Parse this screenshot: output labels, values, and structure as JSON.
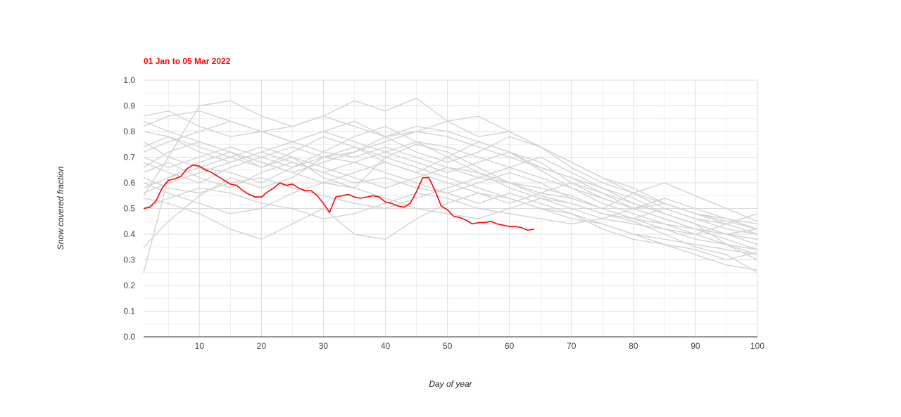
{
  "chart_data": {
    "type": "line",
    "title": "",
    "legend": {
      "label": "01 Jan to 05 Mar 2022",
      "position": "top-left"
    },
    "xlabel": "Day of year",
    "ylabel": "Snow covered fraction",
    "xlim": [
      1,
      100
    ],
    "ylim": [
      0,
      1
    ],
    "x_ticks": [
      10,
      20,
      30,
      40,
      50,
      60,
      70,
      80,
      90,
      100
    ],
    "y_ticks": [
      "0.0",
      "0.1",
      "0.2",
      "0.3",
      "0.4",
      "0.5",
      "0.6",
      "0.7",
      "0.8",
      "0.9",
      "1.0"
    ],
    "grid": true,
    "colors": {
      "current": "#ff0000",
      "historical": "#d3d3d3",
      "grid": "#dddddd",
      "axis": "#333333"
    },
    "current_series": {
      "name": "01 Jan to 05 Mar 2022",
      "x": [
        1,
        2,
        3,
        4,
        5,
        6,
        7,
        8,
        9,
        10,
        11,
        12,
        13,
        14,
        15,
        16,
        17,
        18,
        19,
        20,
        21,
        22,
        23,
        24,
        25,
        26,
        27,
        28,
        29,
        30,
        31,
        32,
        33,
        34,
        35,
        36,
        37,
        38,
        39,
        40,
        41,
        42,
        43,
        44,
        45,
        46,
        47,
        48,
        49,
        50,
        51,
        52,
        53,
        54,
        55,
        56,
        57,
        58,
        59,
        60,
        61,
        62,
        63,
        64
      ],
      "y": [
        0.5,
        0.505,
        0.53,
        0.58,
        0.61,
        0.615,
        0.625,
        0.655,
        0.67,
        0.665,
        0.65,
        0.64,
        0.625,
        0.61,
        0.595,
        0.59,
        0.57,
        0.555,
        0.545,
        0.545,
        0.565,
        0.58,
        0.6,
        0.59,
        0.595,
        0.58,
        0.57,
        0.57,
        0.55,
        0.52,
        0.485,
        0.545,
        0.55,
        0.555,
        0.545,
        0.54,
        0.545,
        0.55,
        0.545,
        0.525,
        0.52,
        0.51,
        0.505,
        0.52,
        0.565,
        0.62,
        0.62,
        0.57,
        0.51,
        0.495,
        0.47,
        0.465,
        0.455,
        0.44,
        0.445,
        0.445,
        0.45,
        0.44,
        0.435,
        0.43,
        0.43,
        0.425,
        0.415,
        0.42
      ]
    },
    "historical_series": [
      {
        "x": [
          1,
          5,
          10,
          15,
          20,
          25,
          30,
          35,
          40,
          45,
          50,
          55,
          60,
          65,
          70,
          75,
          80,
          85,
          90,
          95,
          100
        ],
        "y": [
          0.25,
          0.62,
          0.68,
          0.72,
          0.66,
          0.7,
          0.62,
          0.58,
          0.7,
          0.75,
          0.72,
          0.66,
          0.6,
          0.55,
          0.52,
          0.48,
          0.45,
          0.4,
          0.35,
          0.32,
          0.25
        ]
      },
      {
        "x": [
          1,
          5,
          10,
          15,
          20,
          25,
          30,
          35,
          40,
          45,
          50,
          55,
          60,
          65,
          70,
          75,
          80,
          85,
          90,
          95,
          100
        ],
        "y": [
          0.35,
          0.45,
          0.55,
          0.62,
          0.58,
          0.62,
          0.7,
          0.72,
          0.78,
          0.82,
          0.8,
          0.76,
          0.72,
          0.65,
          0.58,
          0.52,
          0.48,
          0.44,
          0.4,
          0.36,
          0.32
        ]
      },
      {
        "x": [
          1,
          5,
          10,
          15,
          20,
          25,
          30,
          35,
          40,
          45,
          50,
          55,
          60,
          65,
          70,
          75,
          80,
          85,
          90,
          95,
          100
        ],
        "y": [
          0.55,
          0.7,
          0.9,
          0.92,
          0.86,
          0.82,
          0.86,
          0.92,
          0.88,
          0.93,
          0.84,
          0.78,
          0.8,
          0.74,
          0.68,
          0.62,
          0.58,
          0.52,
          0.48,
          0.45,
          0.42
        ]
      },
      {
        "x": [
          1,
          5,
          10,
          15,
          20,
          25,
          30,
          35,
          40,
          45,
          50,
          55,
          60,
          65,
          70,
          75,
          80,
          85,
          90,
          95,
          100
        ],
        "y": [
          0.86,
          0.88,
          0.82,
          0.78,
          0.8,
          0.76,
          0.72,
          0.7,
          0.74,
          0.7,
          0.66,
          0.62,
          0.6,
          0.58,
          0.55,
          0.5,
          0.46,
          0.44,
          0.42,
          0.4,
          0.38
        ]
      },
      {
        "x": [
          1,
          5,
          10,
          15,
          20,
          25,
          30,
          35,
          40,
          45,
          50,
          55,
          60,
          65,
          70,
          75,
          80,
          85,
          90,
          95,
          100
        ],
        "y": [
          0.8,
          0.78,
          0.74,
          0.7,
          0.66,
          0.72,
          0.78,
          0.74,
          0.68,
          0.64,
          0.7,
          0.76,
          0.72,
          0.66,
          0.62,
          0.58,
          0.52,
          0.48,
          0.44,
          0.4,
          0.42
        ]
      },
      {
        "x": [
          1,
          5,
          10,
          15,
          20,
          25,
          30,
          35,
          40,
          45,
          50,
          55,
          60,
          65,
          70,
          75,
          80,
          85,
          90,
          95,
          100
        ],
        "y": [
          0.6,
          0.56,
          0.52,
          0.48,
          0.5,
          0.56,
          0.6,
          0.58,
          0.54,
          0.5,
          0.48,
          0.46,
          0.5,
          0.54,
          0.5,
          0.46,
          0.44,
          0.42,
          0.4,
          0.44,
          0.4
        ]
      },
      {
        "x": [
          1,
          5,
          10,
          15,
          20,
          25,
          30,
          35,
          40,
          45,
          50,
          55,
          60,
          65,
          70,
          75,
          80,
          85,
          90,
          95,
          100
        ],
        "y": [
          0.64,
          0.68,
          0.62,
          0.58,
          0.64,
          0.68,
          0.64,
          0.6,
          0.62,
          0.58,
          0.56,
          0.6,
          0.64,
          0.6,
          0.54,
          0.5,
          0.56,
          0.6,
          0.55,
          0.5,
          0.45
        ]
      },
      {
        "x": [
          1,
          5,
          10,
          15,
          20,
          25,
          30,
          35,
          40,
          45,
          50,
          55,
          60,
          65,
          70,
          75,
          80,
          85,
          90,
          95,
          100
        ],
        "y": [
          0.54,
          0.52,
          0.48,
          0.42,
          0.38,
          0.44,
          0.5,
          0.4,
          0.38,
          0.46,
          0.52,
          0.56,
          0.54,
          0.5,
          0.48,
          0.42,
          0.38,
          0.36,
          0.34,
          0.3,
          0.33
        ]
      },
      {
        "x": [
          1,
          5,
          10,
          15,
          20,
          25,
          30,
          35,
          40,
          45,
          50,
          55,
          60,
          65,
          70,
          75,
          80,
          85,
          90,
          95,
          100
        ],
        "y": [
          0.72,
          0.76,
          0.8,
          0.84,
          0.8,
          0.76,
          0.8,
          0.84,
          0.78,
          0.72,
          0.68,
          0.72,
          0.78,
          0.74,
          0.68,
          0.62,
          0.56,
          0.5,
          0.46,
          0.42,
          0.4
        ]
      },
      {
        "x": [
          1,
          5,
          10,
          15,
          20,
          25,
          30,
          35,
          40,
          45,
          50,
          55,
          60,
          65,
          70,
          75,
          80,
          85,
          90,
          95,
          100
        ],
        "y": [
          0.76,
          0.7,
          0.66,
          0.7,
          0.74,
          0.7,
          0.66,
          0.62,
          0.58,
          0.62,
          0.66,
          0.64,
          0.58,
          0.54,
          0.52,
          0.48,
          0.46,
          0.5,
          0.46,
          0.44,
          0.48
        ]
      },
      {
        "x": [
          1,
          5,
          10,
          15,
          20,
          25,
          30,
          35,
          40,
          45,
          50,
          55,
          60,
          65,
          70,
          75,
          80,
          85,
          90,
          95,
          100
        ],
        "y": [
          0.62,
          0.58,
          0.56,
          0.6,
          0.62,
          0.58,
          0.55,
          0.52,
          0.5,
          0.54,
          0.58,
          0.62,
          0.66,
          0.7,
          0.64,
          0.58,
          0.54,
          0.48,
          0.44,
          0.36,
          0.3
        ]
      },
      {
        "x": [
          1,
          5,
          10,
          15,
          20,
          25,
          30,
          35,
          40,
          45,
          50,
          55,
          60,
          65,
          70,
          75,
          80,
          85,
          90,
          95,
          100
        ],
        "y": [
          0.82,
          0.86,
          0.88,
          0.84,
          0.8,
          0.82,
          0.86,
          0.82,
          0.78,
          0.8,
          0.84,
          0.86,
          0.8,
          0.74,
          0.66,
          0.6,
          0.56,
          0.52,
          0.48,
          0.46,
          0.44
        ]
      },
      {
        "x": [
          1,
          5,
          10,
          15,
          20,
          25,
          30,
          35,
          40,
          45,
          50,
          55,
          60,
          65,
          70,
          75,
          80,
          85,
          90,
          95,
          100
        ],
        "y": [
          0.58,
          0.62,
          0.66,
          0.64,
          0.6,
          0.66,
          0.7,
          0.74,
          0.7,
          0.66,
          0.62,
          0.58,
          0.54,
          0.5,
          0.46,
          0.44,
          0.4,
          0.38,
          0.36,
          0.34,
          0.32
        ]
      },
      {
        "x": [
          1,
          5,
          10,
          15,
          20,
          25,
          30,
          35,
          40,
          45,
          50,
          55,
          60,
          65,
          70,
          75,
          80,
          85,
          90,
          95,
          100
        ],
        "y": [
          0.68,
          0.64,
          0.6,
          0.66,
          0.7,
          0.74,
          0.7,
          0.68,
          0.72,
          0.76,
          0.74,
          0.7,
          0.66,
          0.62,
          0.58,
          0.54,
          0.5,
          0.46,
          0.42,
          0.4,
          0.38
        ]
      },
      {
        "x": [
          1,
          5,
          10,
          15,
          20,
          25,
          30,
          35,
          40,
          45,
          50,
          55,
          60,
          65,
          70,
          75,
          80,
          85,
          90,
          95,
          100
        ],
        "y": [
          0.5,
          0.54,
          0.58,
          0.56,
          0.52,
          0.5,
          0.46,
          0.48,
          0.52,
          0.56,
          0.54,
          0.5,
          0.48,
          0.46,
          0.44,
          0.46,
          0.5,
          0.54,
          0.5,
          0.46,
          0.42
        ]
      },
      {
        "x": [
          1,
          5,
          10,
          15,
          20,
          25,
          30,
          35,
          40,
          45,
          50,
          55,
          60,
          65,
          70,
          75,
          80,
          85,
          90,
          95,
          100
        ],
        "y": [
          0.84,
          0.8,
          0.76,
          0.72,
          0.68,
          0.64,
          0.68,
          0.72,
          0.76,
          0.8,
          0.78,
          0.74,
          0.7,
          0.66,
          0.62,
          0.56,
          0.52,
          0.48,
          0.44,
          0.4,
          0.36
        ]
      },
      {
        "x": [
          1,
          5,
          10,
          15,
          20,
          25,
          30,
          35,
          40,
          45,
          50,
          55,
          60,
          65,
          70,
          75,
          80,
          85,
          90,
          95,
          100
        ],
        "y": [
          0.66,
          0.72,
          0.76,
          0.72,
          0.68,
          0.64,
          0.6,
          0.64,
          0.68,
          0.64,
          0.6,
          0.56,
          0.52,
          0.56,
          0.6,
          0.56,
          0.5,
          0.46,
          0.42,
          0.38,
          0.34
        ]
      },
      {
        "x": [
          1,
          5,
          10,
          15,
          20,
          25,
          30,
          35,
          40,
          45,
          50,
          55,
          60,
          65,
          70,
          75,
          80,
          85,
          90,
          95,
          100
        ],
        "y": [
          0.74,
          0.78,
          0.72,
          0.68,
          0.72,
          0.76,
          0.8,
          0.76,
          0.72,
          0.68,
          0.64,
          0.68,
          0.72,
          0.68,
          0.6,
          0.54,
          0.5,
          0.52,
          0.48,
          0.44,
          0.4
        ]
      },
      {
        "x": [
          1,
          5,
          10,
          15,
          20,
          25,
          30,
          35,
          40,
          45,
          50,
          55,
          60,
          65,
          70,
          75,
          80,
          85,
          90,
          95,
          100
        ],
        "y": [
          0.56,
          0.6,
          0.64,
          0.68,
          0.72,
          0.68,
          0.64,
          0.68,
          0.64,
          0.6,
          0.56,
          0.52,
          0.56,
          0.52,
          0.48,
          0.44,
          0.4,
          0.36,
          0.32,
          0.28,
          0.26
        ]
      },
      {
        "x": [
          1,
          5,
          10,
          15,
          20,
          25,
          30,
          35,
          40,
          45,
          50,
          55,
          60,
          65,
          70,
          75,
          80,
          85,
          90,
          95,
          100
        ],
        "y": [
          0.7,
          0.66,
          0.7,
          0.74,
          0.7,
          0.66,
          0.72,
          0.78,
          0.82,
          0.76,
          0.7,
          0.64,
          0.6,
          0.56,
          0.54,
          0.5,
          0.46,
          0.42,
          0.38,
          0.36,
          0.34
        ]
      }
    ]
  }
}
